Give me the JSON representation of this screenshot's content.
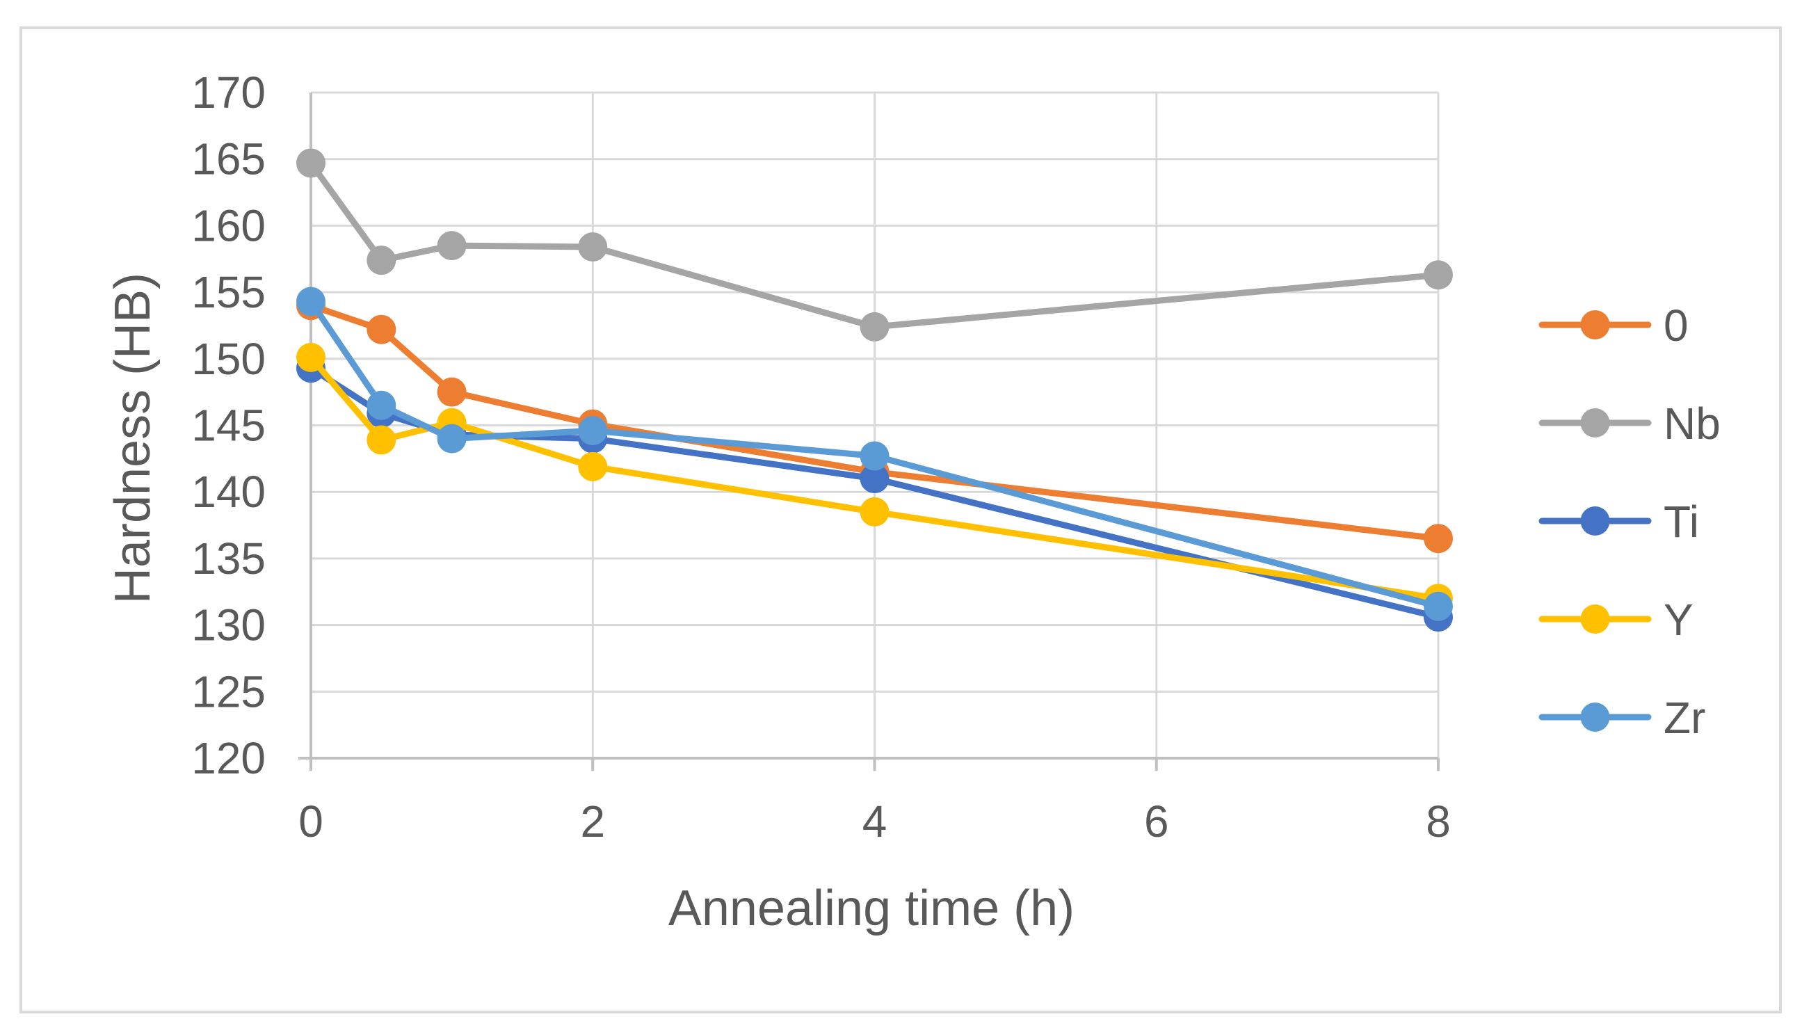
{
  "chart_data": {
    "type": "line",
    "title": "",
    "xlabel": "Annealing time (h)",
    "ylabel": "Hardness (HB)",
    "xlim": [
      0,
      8
    ],
    "ylim": [
      120,
      170
    ],
    "xticks": [
      0,
      2,
      4,
      6,
      8
    ],
    "yticks": [
      120,
      125,
      130,
      135,
      140,
      145,
      150,
      155,
      160,
      165,
      170
    ],
    "x": [
      0,
      0.5,
      1,
      2,
      4,
      8
    ],
    "grid": true,
    "legend_position": "right",
    "series": [
      {
        "name": "0",
        "color": "#ED7D31",
        "values": [
          154.0,
          152.2,
          147.5,
          145.1,
          141.5,
          136.5
        ]
      },
      {
        "name": "Nb",
        "color": "#A5A5A5",
        "values": [
          164.7,
          157.4,
          158.5,
          158.4,
          152.4,
          156.3
        ]
      },
      {
        "name": "Ti",
        "color": "#4472C4",
        "values": [
          149.3,
          145.9,
          144.3,
          144.0,
          141.0,
          130.6
        ]
      },
      {
        "name": "Y",
        "color": "#FFC000",
        "values": [
          150.1,
          143.9,
          145.2,
          141.9,
          138.5,
          132.0
        ]
      },
      {
        "name": "Zr",
        "color": "#5B9BD5",
        "values": [
          154.3,
          146.5,
          144.0,
          144.6,
          142.7,
          131.4
        ]
      }
    ]
  }
}
